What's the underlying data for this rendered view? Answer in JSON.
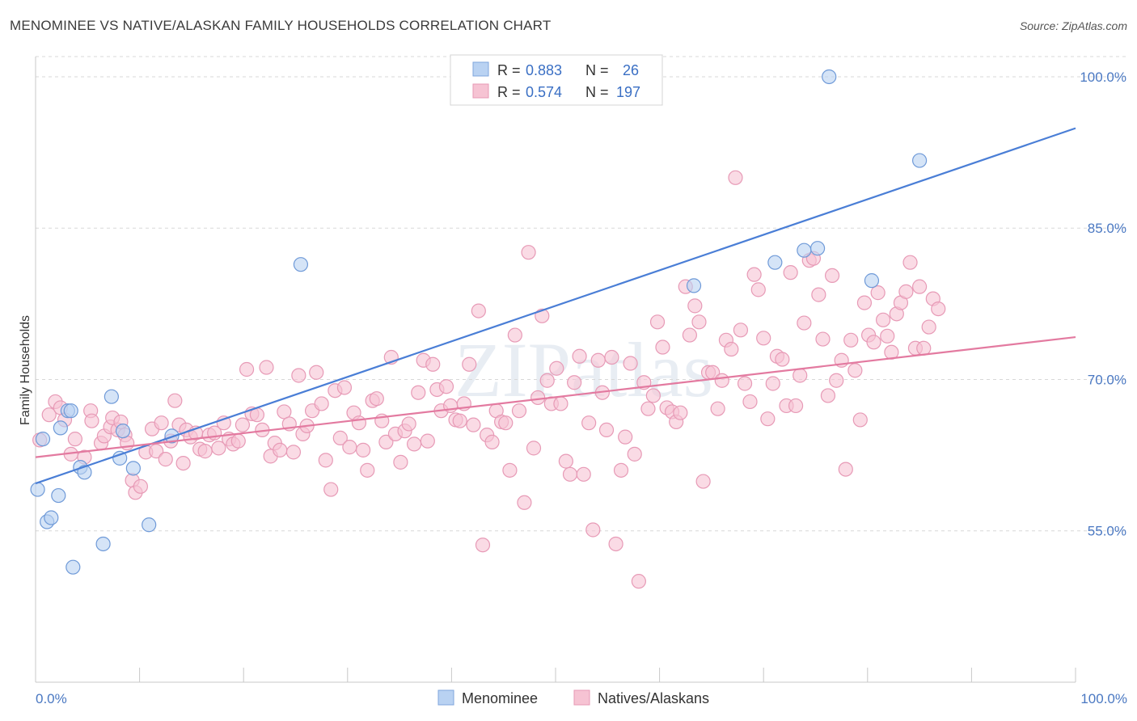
{
  "title": "MENOMINEE VS NATIVE/ALASKAN FAMILY HOUSEHOLDS CORRELATION CHART",
  "source": "Source: ZipAtlas.com",
  "watermark": "ZIPatlas",
  "colors": {
    "blue": "#4a7ed6",
    "blue_fill": "#b9d2f2",
    "pink": "#e37aa0",
    "pink_fill": "#f6c3d3",
    "tick": "#4a78c2",
    "grid": "#d8d8d8"
  },
  "chart_data": {
    "type": "scatter",
    "title": "MENOMINEE VS NATIVE/ALASKAN FAMILY HOUSEHOLDS CORRELATION CHART",
    "xlabel": "",
    "ylabel": "Family Households",
    "xlim": [
      0,
      100
    ],
    "ylim": [
      40,
      102
    ],
    "x_tick_labels": [
      "0.0%",
      "100.0%"
    ],
    "y_ticks": [
      {
        "value": 55,
        "label": "55.0%"
      },
      {
        "value": 70,
        "label": "70.0%"
      },
      {
        "value": 85,
        "label": "85.0%"
      },
      {
        "value": 100,
        "label": "100.0%"
      }
    ],
    "grid": true,
    "legend": {
      "placement": "top-center",
      "rows": [
        {
          "r_label": "R = ",
          "r_value": "0.883",
          "n_label": "N = ",
          "n_value": "26"
        },
        {
          "r_label": "R = ",
          "r_value": "0.574",
          "n_label": "N = ",
          "n_value": "197"
        }
      ]
    },
    "series": [
      {
        "name": "Menominee",
        "color": "#4a7ed6",
        "trend": {
          "x": [
            0,
            100
          ],
          "y": [
            59.7,
            94.9
          ]
        },
        "points": [
          [
            0.2,
            59.1
          ],
          [
            0.7,
            64.1
          ],
          [
            1.1,
            55.9
          ],
          [
            1.5,
            56.3
          ],
          [
            2.2,
            58.5
          ],
          [
            2.4,
            65.2
          ],
          [
            3.1,
            66.9
          ],
          [
            3.4,
            66.9
          ],
          [
            4.3,
            61.3
          ],
          [
            4.7,
            60.8
          ],
          [
            7.3,
            68.3
          ],
          [
            8.1,
            62.2
          ],
          [
            8.4,
            64.9
          ],
          [
            9.4,
            61.2
          ],
          [
            10.9,
            55.6
          ],
          [
            13.1,
            64.4
          ],
          [
            6.5,
            53.7
          ],
          [
            3.6,
            51.4
          ],
          [
            25.5,
            81.4
          ],
          [
            63.3,
            79.3
          ],
          [
            71.1,
            81.6
          ],
          [
            73.9,
            82.8
          ],
          [
            75.2,
            83.0
          ],
          [
            80.4,
            79.8
          ],
          [
            85.0,
            91.7
          ],
          [
            76.3,
            100.0
          ]
        ]
      },
      {
        "name": "Natives/Alaskans",
        "color": "#e37aa0",
        "trend": {
          "x": [
            0,
            100
          ],
          "y": [
            62.3,
            74.2
          ]
        },
        "points": [
          [
            0.4,
            64.0
          ],
          [
            1.3,
            66.5
          ],
          [
            1.9,
            67.8
          ],
          [
            2.4,
            67.2
          ],
          [
            2.8,
            66.0
          ],
          [
            3.4,
            62.6
          ],
          [
            3.8,
            64.1
          ],
          [
            4.7,
            62.3
          ],
          [
            5.3,
            66.9
          ],
          [
            5.4,
            65.9
          ],
          [
            6.3,
            63.7
          ],
          [
            6.6,
            64.4
          ],
          [
            7.2,
            65.3
          ],
          [
            7.4,
            66.2
          ],
          [
            7.9,
            65.0
          ],
          [
            8.2,
            65.8
          ],
          [
            8.6,
            64.5
          ],
          [
            8.8,
            63.7
          ],
          [
            9.3,
            60.0
          ],
          [
            9.6,
            58.8
          ],
          [
            10.1,
            59.4
          ],
          [
            10.6,
            62.8
          ],
          [
            11.2,
            65.1
          ],
          [
            11.6,
            62.9
          ],
          [
            12.1,
            65.7
          ],
          [
            12.5,
            62.1
          ],
          [
            13.0,
            63.9
          ],
          [
            13.4,
            67.9
          ],
          [
            13.8,
            65.5
          ],
          [
            14.2,
            61.7
          ],
          [
            14.5,
            65.0
          ],
          [
            14.9,
            64.3
          ],
          [
            15.4,
            64.7
          ],
          [
            15.8,
            63.1
          ],
          [
            16.3,
            62.9
          ],
          [
            16.7,
            64.5
          ],
          [
            17.2,
            64.7
          ],
          [
            17.6,
            63.2
          ],
          [
            18.1,
            65.7
          ],
          [
            18.6,
            64.1
          ],
          [
            19.0,
            63.6
          ],
          [
            19.5,
            63.9
          ],
          [
            19.9,
            65.5
          ],
          [
            20.3,
            71.0
          ],
          [
            20.8,
            66.6
          ],
          [
            21.3,
            66.5
          ],
          [
            21.8,
            65.0
          ],
          [
            22.2,
            71.2
          ],
          [
            22.6,
            62.4
          ],
          [
            23.0,
            63.7
          ],
          [
            23.5,
            63.0
          ],
          [
            23.9,
            66.8
          ],
          [
            24.4,
            65.6
          ],
          [
            24.8,
            62.8
          ],
          [
            25.3,
            70.4
          ],
          [
            25.7,
            64.6
          ],
          [
            26.1,
            65.4
          ],
          [
            26.6,
            66.9
          ],
          [
            27.0,
            70.7
          ],
          [
            27.5,
            67.6
          ],
          [
            27.9,
            62.0
          ],
          [
            28.4,
            59.1
          ],
          [
            28.8,
            68.9
          ],
          [
            29.3,
            64.2
          ],
          [
            29.7,
            69.2
          ],
          [
            30.2,
            63.3
          ],
          [
            30.6,
            66.7
          ],
          [
            31.1,
            65.7
          ],
          [
            31.5,
            63.0
          ],
          [
            31.9,
            61.0
          ],
          [
            32.4,
            67.9
          ],
          [
            32.8,
            68.1
          ],
          [
            33.3,
            65.9
          ],
          [
            33.7,
            63.8
          ],
          [
            34.2,
            72.2
          ],
          [
            34.6,
            64.6
          ],
          [
            35.1,
            61.8
          ],
          [
            35.5,
            64.9
          ],
          [
            35.9,
            65.6
          ],
          [
            36.4,
            63.6
          ],
          [
            36.8,
            68.7
          ],
          [
            37.3,
            71.9
          ],
          [
            37.7,
            63.9
          ],
          [
            38.2,
            71.5
          ],
          [
            38.6,
            69.0
          ],
          [
            39.0,
            66.9
          ],
          [
            39.5,
            69.3
          ],
          [
            39.9,
            67.4
          ],
          [
            40.4,
            66.0
          ],
          [
            40.8,
            65.9
          ],
          [
            41.2,
            67.6
          ],
          [
            41.7,
            71.5
          ],
          [
            42.1,
            65.5
          ],
          [
            42.6,
            76.8
          ],
          [
            43.0,
            53.6
          ],
          [
            43.4,
            64.5
          ],
          [
            43.9,
            63.8
          ],
          [
            44.3,
            66.9
          ],
          [
            44.8,
            65.8
          ],
          [
            45.2,
            65.7
          ],
          [
            45.6,
            61.0
          ],
          [
            46.1,
            74.4
          ],
          [
            46.5,
            66.9
          ],
          [
            47.0,
            57.8
          ],
          [
            47.4,
            82.6
          ],
          [
            47.9,
            63.2
          ],
          [
            48.3,
            68.2
          ],
          [
            48.7,
            76.3
          ],
          [
            49.2,
            69.9
          ],
          [
            49.6,
            67.6
          ],
          [
            50.1,
            71.1
          ],
          [
            50.5,
            67.6
          ],
          [
            51.0,
            61.9
          ],
          [
            51.4,
            60.6
          ],
          [
            51.8,
            69.7
          ],
          [
            52.3,
            72.3
          ],
          [
            52.7,
            60.6
          ],
          [
            53.2,
            65.7
          ],
          [
            53.6,
            55.1
          ],
          [
            54.1,
            71.9
          ],
          [
            54.5,
            68.7
          ],
          [
            54.9,
            65.0
          ],
          [
            55.4,
            72.2
          ],
          [
            55.8,
            53.7
          ],
          [
            56.3,
            61.0
          ],
          [
            56.7,
            64.3
          ],
          [
            57.2,
            71.6
          ],
          [
            57.6,
            62.6
          ],
          [
            58.0,
            50.0
          ],
          [
            58.5,
            69.7
          ],
          [
            58.9,
            67.1
          ],
          [
            59.4,
            68.4
          ],
          [
            59.8,
            75.7
          ],
          [
            60.3,
            73.2
          ],
          [
            60.7,
            67.2
          ],
          [
            61.2,
            66.8
          ],
          [
            61.6,
            65.8
          ],
          [
            62.0,
            66.7
          ],
          [
            62.5,
            79.2
          ],
          [
            62.9,
            74.4
          ],
          [
            63.4,
            77.3
          ],
          [
            63.8,
            75.7
          ],
          [
            64.2,
            59.9
          ],
          [
            64.7,
            70.7
          ],
          [
            65.1,
            70.7
          ],
          [
            65.6,
            67.1
          ],
          [
            66.0,
            69.9
          ],
          [
            66.4,
            73.9
          ],
          [
            66.9,
            73.0
          ],
          [
            67.3,
            90.0
          ],
          [
            67.8,
            74.9
          ],
          [
            68.2,
            69.6
          ],
          [
            68.7,
            67.8
          ],
          [
            69.1,
            80.4
          ],
          [
            69.5,
            78.9
          ],
          [
            70.0,
            74.1
          ],
          [
            70.4,
            66.1
          ],
          [
            70.9,
            69.6
          ],
          [
            71.3,
            72.3
          ],
          [
            71.8,
            72.0
          ],
          [
            72.2,
            67.4
          ],
          [
            72.6,
            80.6
          ],
          [
            73.1,
            67.4
          ],
          [
            73.5,
            70.4
          ],
          [
            73.9,
            75.6
          ],
          [
            74.4,
            81.8
          ],
          [
            74.8,
            82.0
          ],
          [
            75.3,
            78.4
          ],
          [
            75.7,
            74.0
          ],
          [
            76.2,
            68.4
          ],
          [
            76.6,
            80.3
          ],
          [
            77.0,
            69.9
          ],
          [
            77.5,
            71.9
          ],
          [
            77.9,
            61.1
          ],
          [
            78.4,
            73.9
          ],
          [
            78.8,
            70.9
          ],
          [
            79.3,
            66.0
          ],
          [
            79.7,
            77.6
          ],
          [
            80.1,
            74.4
          ],
          [
            80.6,
            73.7
          ],
          [
            81.0,
            78.6
          ],
          [
            81.5,
            75.9
          ],
          [
            81.9,
            74.3
          ],
          [
            82.3,
            72.7
          ],
          [
            82.8,
            76.5
          ],
          [
            83.2,
            77.6
          ],
          [
            83.7,
            78.7
          ],
          [
            84.1,
            81.6
          ],
          [
            84.6,
            73.1
          ],
          [
            85.0,
            79.2
          ],
          [
            85.4,
            73.1
          ],
          [
            85.9,
            75.2
          ],
          [
            86.3,
            78.0
          ],
          [
            86.8,
            77.0
          ]
        ]
      }
    ]
  },
  "bottom_legend": [
    {
      "label": "Menominee"
    },
    {
      "label": "Natives/Alaskans"
    }
  ]
}
